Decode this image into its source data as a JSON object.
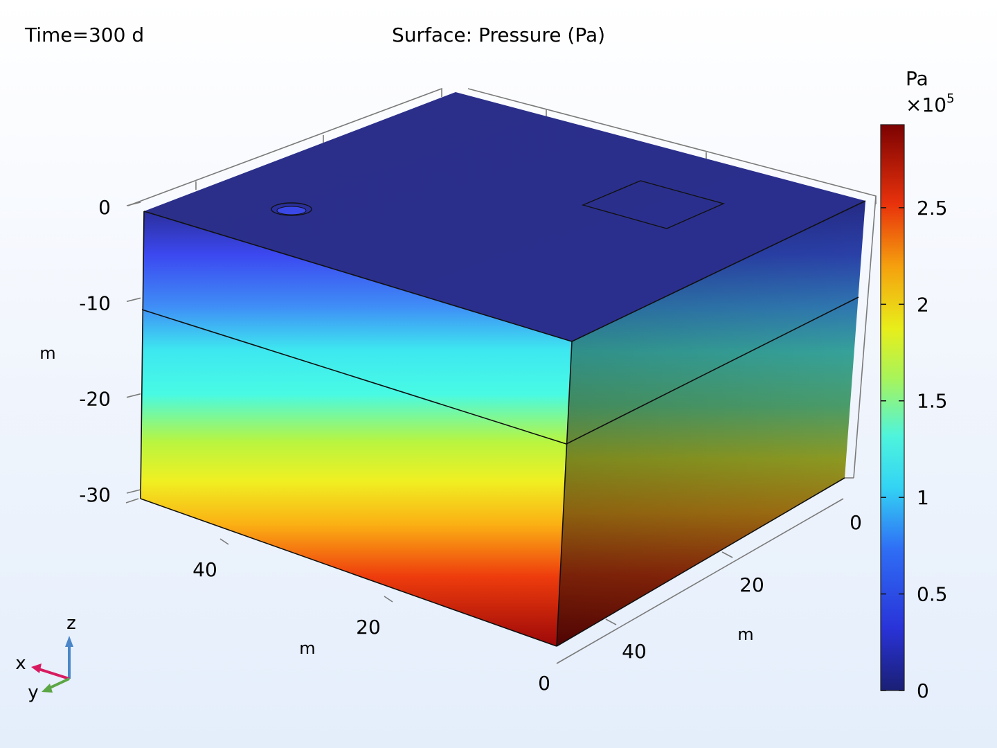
{
  "chart_data": {
    "type": "surface-3d",
    "time_label": "Time=300 d",
    "title": "Surface: Pressure (Pa)",
    "axes": {
      "z": {
        "unit": "m",
        "ticks": [
          "0",
          "-10",
          "-20",
          "-30"
        ],
        "range": [
          -30,
          0
        ]
      },
      "x": {
        "unit": "m",
        "ticks": [
          "0",
          "20",
          "40"
        ]
      },
      "y": {
        "unit": "m",
        "ticks": [
          "0",
          "20",
          "40"
        ]
      }
    },
    "layer_interface_z": -10.5,
    "colorbar": {
      "unit": "Pa",
      "multiplier": "×10",
      "multiplier_exp": "5",
      "ticks": [
        "0",
        "0.5",
        "1",
        "1.5",
        "2",
        "2.5"
      ],
      "range": [
        0,
        2.93
      ],
      "colormap": "rainbow"
    },
    "triad": {
      "x": "x",
      "y": "y",
      "z": "z"
    },
    "colors": {
      "x_axis": "#d81b60",
      "y_axis": "#5ca645",
      "z_axis": "#4a86c8"
    }
  }
}
